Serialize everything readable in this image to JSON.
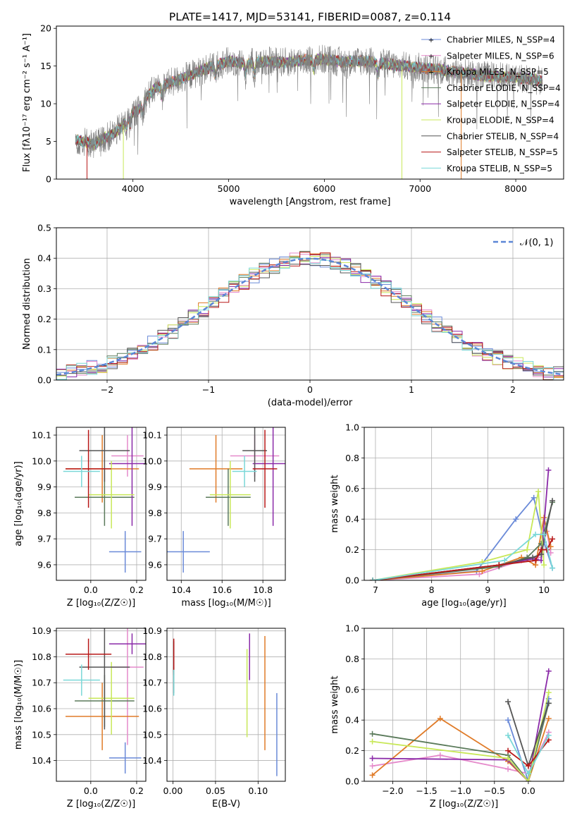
{
  "title": "PLATE=1417, MJD=53141, FIBERID=0087, z=0.114",
  "colors": {
    "chabrier_miles": "#6a8ad8",
    "salpeter_miles": "#e58acb",
    "kroupa_miles": "#e07b28",
    "chabrier_elodie": "#5a7a5a",
    "salpeter_elodie": "#8a2aa8",
    "kroupa_elodie": "#c8e858",
    "chabrier_stelib": "#555555",
    "salpeter_stelib": "#b81818",
    "kroupa_stelib": "#7ad8d8",
    "data": "#808080",
    "normal": "#5b86d6",
    "grid": "#b0b0b0"
  },
  "chart_data": [
    {
      "id": "spectrum",
      "type": "line",
      "title": "PLATE=1417, MJD=53141, FIBERID=0087, z=0.114",
      "xlabel": "wavelength [Angstrom, rest frame]",
      "ylabel": "Flux [fλ10⁻¹⁷ erg cm⁻² s⁻¹ A⁻¹]",
      "xlim": [
        3200,
        8500
      ],
      "ylim": [
        0,
        20.3
      ],
      "xticks": [
        "4000",
        "5000",
        "6000",
        "7000",
        "8000"
      ],
      "yticks": [
        "0",
        "5",
        "10",
        "15",
        "20"
      ],
      "grid": false,
      "legend": "top-right",
      "legend_entries": [
        {
          "label": "Chabrier MILES, N_SSP=4",
          "color": "#6a8ad8"
        },
        {
          "label": "Salpeter MILES, N_SSP=6",
          "color": "#e58acb"
        },
        {
          "label": "Kroupa MILES, N_SSP=5",
          "color": "#e07b28"
        },
        {
          "label": "Chabrier ELODIE, N_SSP=4",
          "color": "#5a7a5a"
        },
        {
          "label": "Salpeter ELODIE, N_SSP=4",
          "color": "#8a2aa8"
        },
        {
          "label": "Kroupa ELODIE, N_SSP=4",
          "color": "#c8e858"
        },
        {
          "label": "Chabrier STELIB, N_SSP=4",
          "color": "#555555"
        },
        {
          "label": "Salpeter STELIB, N_SSP=5",
          "color": "#b81818"
        },
        {
          "label": "Kroupa STELIB, N_SSP=5",
          "color": "#7ad8d8"
        }
      ],
      "continuum": [
        [
          3400,
          5.2
        ],
        [
          3500,
          5.0
        ],
        [
          3600,
          4.6
        ],
        [
          3700,
          5.4
        ],
        [
          3800,
          6.0
        ],
        [
          3900,
          7.2
        ],
        [
          3950,
          8.5
        ],
        [
          4050,
          9.0
        ],
        [
          4150,
          11.0
        ],
        [
          4250,
          12.2
        ],
        [
          4400,
          12.8
        ],
        [
          4600,
          13.8
        ],
        [
          4800,
          14.8
        ],
        [
          5000,
          15.6
        ],
        [
          5200,
          15.4
        ],
        [
          5400,
          15.6
        ],
        [
          5600,
          15.5
        ],
        [
          5800,
          15.8
        ],
        [
          6000,
          15.9
        ],
        [
          6200,
          15.5
        ],
        [
          6400,
          15.7
        ],
        [
          6600,
          15.4
        ],
        [
          6800,
          15.0
        ],
        [
          7000,
          14.8
        ],
        [
          7200,
          14.5
        ],
        [
          7400,
          14.2
        ],
        [
          7600,
          13.8
        ],
        [
          7800,
          13.6
        ],
        [
          8000,
          13.5
        ],
        [
          8200,
          13.2
        ],
        [
          8280,
          12.9
        ]
      ]
    },
    {
      "id": "residuals",
      "type": "line",
      "xlabel": "(data-model)/error",
      "ylabel": "Normed distribution",
      "xlim": [
        -2.5,
        2.5
      ],
      "ylim": [
        0,
        0.5
      ],
      "xticks": [
        "−2",
        "−1",
        "0",
        "1",
        "2"
      ],
      "yticks": [
        "0.0",
        "0.1",
        "0.2",
        "0.3",
        "0.4",
        "0.5"
      ],
      "grid": true,
      "legend": "top-right",
      "legend_entries": [
        {
          "label": "𝒩(0, 1)",
          "color": "#5b86d6"
        }
      ],
      "bin_width": 0.1
    },
    {
      "id": "age_vs_Z",
      "type": "scatter",
      "xlabel": "Z [log₁₀(Z/Z☉)]",
      "ylabel": "age  [log₁₀(age/yr)]",
      "xlim": [
        -0.15,
        0.24
      ],
      "ylim": [
        9.54,
        10.13
      ],
      "xticks": [
        "0.0",
        "0.2"
      ],
      "yticks": [
        "9.6",
        "9.7",
        "9.8",
        "9.9",
        "10.0",
        "10.1"
      ],
      "grid": true,
      "points": [
        {
          "series": "Chabrier MILES",
          "x": 0.15,
          "y": 9.65,
          "xerr": 0.07,
          "yerr": 0.08,
          "color": "#6a8ad8"
        },
        {
          "series": "Salpeter MILES",
          "x": 0.16,
          "y": 10.02,
          "xerr": 0.07,
          "yerr": 0.08,
          "color": "#e58acb"
        },
        {
          "series": "Kroupa MILES",
          "x": 0.05,
          "y": 9.97,
          "xerr": 0.16,
          "yerr": 0.13,
          "color": "#e07b28"
        },
        {
          "series": "Chabrier ELODIE",
          "x": 0.06,
          "y": 9.86,
          "xerr": 0.13,
          "yerr": 0.11,
          "color": "#5a7a5a"
        },
        {
          "series": "Salpeter ELODIE",
          "x": 0.18,
          "y": 9.99,
          "xerr": 0.1,
          "yerr": 0.24,
          "color": "#8a2aa8"
        },
        {
          "series": "Kroupa ELODIE",
          "x": 0.09,
          "y": 9.87,
          "xerr": 0.1,
          "yerr": 0.13,
          "color": "#c8e858"
        },
        {
          "series": "Chabrier STELIB",
          "x": 0.06,
          "y": 10.04,
          "xerr": 0.11,
          "yerr": 0.12,
          "color": "#555555"
        },
        {
          "series": "Salpeter STELIB",
          "x": -0.01,
          "y": 9.97,
          "xerr": 0.1,
          "yerr": 0.15,
          "color": "#b81818"
        },
        {
          "series": "Kroupa STELIB",
          "x": -0.04,
          "y": 9.96,
          "xerr": 0.08,
          "yerr": 0.06,
          "color": "#7ad8d8"
        }
      ]
    },
    {
      "id": "age_vs_mass",
      "type": "scatter",
      "xlabel": "mass [log₁₀(M/M☉)]",
      "ylabel": "",
      "xlim": [
        10.33,
        10.91
      ],
      "ylim": [
        9.54,
        10.13
      ],
      "xticks": [
        "10.4",
        "10.6",
        "10.8"
      ],
      "yticks": [
        "9.6",
        "9.7",
        "9.8",
        "9.9",
        "10.0",
        "10.1"
      ],
      "grid": true,
      "points": [
        {
          "series": "Chabrier MILES",
          "x": 10.41,
          "y": 9.65,
          "xerr": 0.13,
          "yerr": 0.08,
          "color": "#6a8ad8"
        },
        {
          "series": "Salpeter MILES",
          "x": 10.76,
          "y": 10.02,
          "xerr": 0.12,
          "yerr": 0.08,
          "color": "#e58acb"
        },
        {
          "series": "Kroupa MILES",
          "x": 10.57,
          "y": 9.97,
          "xerr": 0.13,
          "yerr": 0.13,
          "color": "#e07b28"
        },
        {
          "series": "Chabrier ELODIE",
          "x": 10.63,
          "y": 9.86,
          "xerr": 0.11,
          "yerr": 0.11,
          "color": "#5a7a5a"
        },
        {
          "series": "Salpeter ELODIE",
          "x": 10.85,
          "y": 9.99,
          "xerr": 0.1,
          "yerr": 0.24,
          "color": "#8a2aa8"
        },
        {
          "series": "Kroupa ELODIE",
          "x": 10.64,
          "y": 9.87,
          "xerr": 0.1,
          "yerr": 0.13,
          "color": "#c8e858"
        },
        {
          "series": "Chabrier STELIB",
          "x": 10.76,
          "y": 10.04,
          "xerr": 0.06,
          "yerr": 0.12,
          "color": "#555555"
        },
        {
          "series": "Salpeter STELIB",
          "x": 10.81,
          "y": 9.97,
          "xerr": 0.06,
          "yerr": 0.15,
          "color": "#b81818"
        },
        {
          "series": "Kroupa STELIB",
          "x": 10.71,
          "y": 9.96,
          "xerr": 0.06,
          "yerr": 0.06,
          "color": "#7ad8d8"
        }
      ]
    },
    {
      "id": "weight_vs_age",
      "type": "line",
      "xlabel": "age  [log₁₀(age/yr)]",
      "ylabel": "mass weight",
      "xlim": [
        6.8,
        10.35
      ],
      "ylim": [
        0,
        1.0
      ],
      "xticks": [
        "7",
        "8",
        "9",
        "10"
      ],
      "yticks": [
        "0.0",
        "0.2",
        "0.4",
        "0.6",
        "0.8",
        "1.0"
      ],
      "grid": true,
      "series": [
        {
          "name": "Chabrier MILES",
          "color": "#6a8ad8",
          "x": [
            6.95,
            8.8,
            9.5,
            9.82,
            10.0,
            10.15
          ],
          "y": [
            0.0,
            0.06,
            0.4,
            0.54,
            0.25,
            0.08
          ]
        },
        {
          "name": "Salpeter MILES",
          "color": "#e58acb",
          "x": [
            6.95,
            8.85,
            9.6,
            9.9,
            10.05,
            10.12
          ],
          "y": [
            0.0,
            0.04,
            0.13,
            0.15,
            0.32,
            0.18
          ]
        },
        {
          "name": "Kroupa MILES",
          "color": "#e07b28",
          "x": [
            6.95,
            8.9,
            9.6,
            9.85,
            10.0,
            10.12
          ],
          "y": [
            0.0,
            0.06,
            0.15,
            0.1,
            0.41,
            0.22
          ]
        },
        {
          "name": "Chabrier ELODIE",
          "color": "#5a7a5a",
          "x": [
            6.95,
            9.2,
            9.7,
            9.95,
            10.15
          ],
          "y": [
            0.0,
            0.09,
            0.15,
            0.24,
            0.51
          ]
        },
        {
          "name": "Salpeter ELODIE",
          "color": "#8a2aa8",
          "x": [
            6.95,
            9.2,
            9.8,
            9.95,
            10.08
          ],
          "y": [
            0.0,
            0.1,
            0.14,
            0.13,
            0.72
          ]
        },
        {
          "name": "Kroupa ELODIE",
          "color": "#c8e858",
          "x": [
            6.95,
            8.9,
            9.7,
            9.9,
            10.0
          ],
          "y": [
            0.0,
            0.12,
            0.2,
            0.58,
            0.1
          ]
        },
        {
          "name": "Chabrier STELIB",
          "color": "#555555",
          "x": [
            6.95,
            9.2,
            9.8,
            9.95,
            10.15
          ],
          "y": [
            0.0,
            0.1,
            0.15,
            0.17,
            0.52
          ]
        },
        {
          "name": "Salpeter STELIB",
          "color": "#b81818",
          "x": [
            6.95,
            9.2,
            9.85,
            9.95,
            10.05,
            10.15
          ],
          "y": [
            0.0,
            0.1,
            0.13,
            0.2,
            0.2,
            0.27
          ]
        },
        {
          "name": "Kroupa STELIB",
          "color": "#7ad8d8",
          "x": [
            6.95,
            9.3,
            9.85,
            10.0,
            10.15
          ],
          "y": [
            0.0,
            0.13,
            0.3,
            0.3,
            0.08
          ]
        }
      ]
    },
    {
      "id": "mass_vs_Z",
      "type": "scatter",
      "xlabel": "Z [log₁₀(Z/Z☉)]",
      "ylabel": "mass [log₁₀(M/M☉)]",
      "xlim": [
        -0.15,
        0.24
      ],
      "ylim": [
        10.32,
        10.91
      ],
      "xticks": [
        "0.0",
        "0.2"
      ],
      "yticks": [
        "10.4",
        "10.5",
        "10.6",
        "10.7",
        "10.8",
        "10.9"
      ],
      "grid": true,
      "points": [
        {
          "series": "Chabrier MILES",
          "x": 0.15,
          "y": 10.41,
          "xerr": 0.07,
          "yerr": 0.06,
          "color": "#6a8ad8"
        },
        {
          "series": "Salpeter MILES",
          "x": 0.16,
          "y": 10.76,
          "xerr": 0.07,
          "yerr": 0.3,
          "color": "#e58acb"
        },
        {
          "series": "Kroupa MILES",
          "x": 0.05,
          "y": 10.57,
          "xerr": 0.16,
          "yerr": 0.13,
          "color": "#e07b28"
        },
        {
          "series": "Chabrier ELODIE",
          "x": 0.06,
          "y": 10.63,
          "xerr": 0.13,
          "yerr": 0.1,
          "color": "#5a7a5a"
        },
        {
          "series": "Salpeter ELODIE",
          "x": 0.18,
          "y": 10.85,
          "xerr": 0.1,
          "yerr": 0.04,
          "color": "#8a2aa8"
        },
        {
          "series": "Kroupa ELODIE",
          "x": 0.09,
          "y": 10.64,
          "xerr": 0.1,
          "yerr": 0.14,
          "color": "#c8e858"
        },
        {
          "series": "Chabrier STELIB",
          "x": 0.06,
          "y": 10.76,
          "xerr": 0.11,
          "yerr": 0.24,
          "color": "#555555"
        },
        {
          "series": "Salpeter STELIB",
          "x": -0.01,
          "y": 10.81,
          "xerr": 0.1,
          "yerr": 0.06,
          "color": "#b81818"
        },
        {
          "series": "Kroupa STELIB",
          "x": -0.04,
          "y": 10.71,
          "xerr": 0.08,
          "yerr": 0.06,
          "color": "#7ad8d8"
        }
      ]
    },
    {
      "id": "mass_vs_EBV",
      "type": "scatter",
      "xlabel": "E(B-V)",
      "ylabel": "",
      "xlim": [
        -0.007,
        0.132
      ],
      "ylim": [
        10.32,
        10.91
      ],
      "xticks": [
        "0.00",
        "0.05",
        "0.10"
      ],
      "yticks": [
        "10.4",
        "10.5",
        "10.6",
        "10.7",
        "10.8",
        "10.9"
      ],
      "grid": true,
      "points": [
        {
          "series": "Chabrier MILES",
          "x": 0.122,
          "y": 10.5,
          "yerr": 0.16,
          "color": "#6a8ad8"
        },
        {
          "series": "Salpeter MILES",
          "x": 0.001,
          "y": 10.72,
          "yerr": 0.06,
          "color": "#e58acb"
        },
        {
          "series": "Kroupa MILES",
          "x": 0.108,
          "y": 10.66,
          "yerr": 0.22,
          "color": "#e07b28"
        },
        {
          "series": "Chabrier ELODIE",
          "x": 0.001,
          "y": 10.71,
          "yerr": 0.05,
          "color": "#5a7a5a"
        },
        {
          "series": "Salpeter ELODIE",
          "x": 0.09,
          "y": 10.8,
          "yerr": 0.09,
          "color": "#8a2aa8"
        },
        {
          "series": "Kroupa ELODIE",
          "x": 0.087,
          "y": 10.66,
          "yerr": 0.17,
          "color": "#c8e858"
        },
        {
          "series": "Chabrier STELIB",
          "x": 0.001,
          "y": 10.8,
          "yerr": 0.06,
          "color": "#555555"
        },
        {
          "series": "Salpeter STELIB",
          "x": 0.001,
          "y": 10.8,
          "yerr": 0.07,
          "color": "#b81818"
        },
        {
          "series": "Kroupa STELIB",
          "x": 0.001,
          "y": 10.7,
          "yerr": 0.05,
          "color": "#7ad8d8"
        }
      ]
    },
    {
      "id": "weight_vs_Z",
      "type": "line",
      "xlabel": "Z [log₁₀(Z/Z☉)]",
      "ylabel": "mass weight",
      "xlim": [
        -2.42,
        0.52
      ],
      "ylim": [
        0,
        1.0
      ],
      "xticks": [
        "−2.0",
        "−1.5",
        "−1.0",
        "−0.5",
        "0.0"
      ],
      "yticks": [
        "0.0",
        "0.2",
        "0.4",
        "0.6",
        "0.8",
        "1.0"
      ],
      "grid": true,
      "series": [
        {
          "name": "Chabrier MILES",
          "color": "#6a8ad8",
          "x": [
            -0.3,
            0.0,
            0.3
          ],
          "y": [
            0.4,
            0.0,
            0.54
          ]
        },
        {
          "name": "Salpeter MILES",
          "color": "#e58acb",
          "x": [
            -2.3,
            -1.3,
            -0.3,
            0.0,
            0.3
          ],
          "y": [
            0.1,
            0.17,
            0.08,
            0.05,
            0.32
          ]
        },
        {
          "name": "Kroupa MILES",
          "color": "#e07b28",
          "x": [
            -2.3,
            -1.3,
            -0.3,
            0.0,
            0.3
          ],
          "y": [
            0.04,
            0.41,
            0.13,
            0.0,
            0.41
          ]
        },
        {
          "name": "Chabrier ELODIE",
          "color": "#5a7a5a",
          "x": [
            -2.3,
            -0.3,
            0.0,
            0.3
          ],
          "y": [
            0.31,
            0.17,
            0.0,
            0.51
          ]
        },
        {
          "name": "Salpeter ELODIE",
          "color": "#8a2aa8",
          "x": [
            -2.3,
            -0.3,
            0.0,
            0.3
          ],
          "y": [
            0.15,
            0.14,
            0.0,
            0.72
          ]
        },
        {
          "name": "Kroupa ELODIE",
          "color": "#c8e858",
          "x": [
            -2.3,
            -0.3,
            0.0,
            0.3
          ],
          "y": [
            0.26,
            0.15,
            0.0,
            0.58
          ]
        },
        {
          "name": "Chabrier STELIB",
          "color": "#555555",
          "x": [
            -0.3,
            0.0,
            0.3
          ],
          "y": [
            0.52,
            0.1,
            0.51
          ]
        },
        {
          "name": "Salpeter STELIB",
          "color": "#b81818",
          "x": [
            -0.3,
            0.0,
            0.3
          ],
          "y": [
            0.2,
            0.1,
            0.27
          ]
        },
        {
          "name": "Kroupa STELIB",
          "color": "#7ad8d8",
          "x": [
            -0.3,
            0.0,
            0.3
          ],
          "y": [
            0.3,
            0.05,
            0.3
          ]
        }
      ]
    }
  ]
}
